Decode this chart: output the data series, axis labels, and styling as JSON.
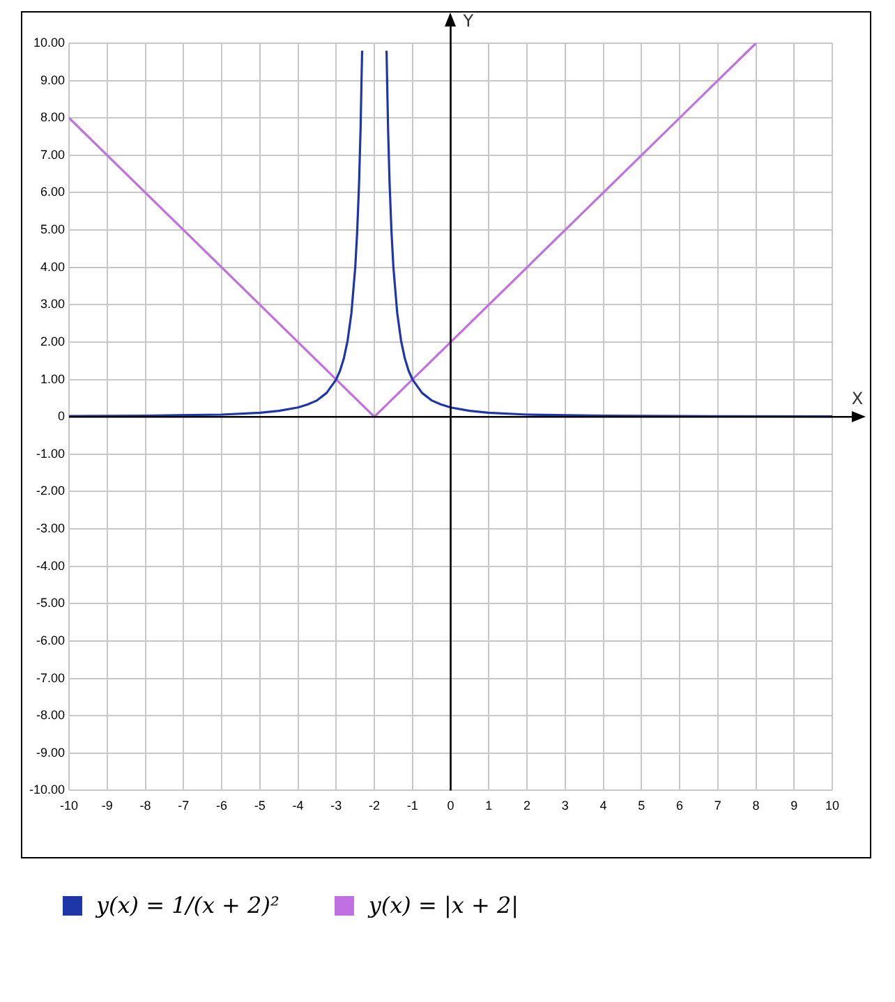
{
  "chart_data": {
    "type": "line",
    "xlabel": "X",
    "ylabel": "Y",
    "xlim": [
      -10,
      10
    ],
    "ylim": [
      -10,
      10
    ],
    "xticks": [
      -10,
      -9,
      -8,
      -7,
      -6,
      -5,
      -4,
      -3,
      -2,
      -1,
      0,
      1,
      2,
      3,
      4,
      5,
      6,
      7,
      8,
      9,
      10
    ],
    "yticks": [
      {
        "value": -10,
        "label": "-10.00"
      },
      {
        "value": -9,
        "label": "-9.00"
      },
      {
        "value": -8,
        "label": "-8.00"
      },
      {
        "value": -7,
        "label": "-7.00"
      },
      {
        "value": -6,
        "label": "-6.00"
      },
      {
        "value": -5,
        "label": "-5.00"
      },
      {
        "value": -4,
        "label": "-4.00"
      },
      {
        "value": -3,
        "label": "-3.00"
      },
      {
        "value": -2,
        "label": "-2.00"
      },
      {
        "value": -1,
        "label": "-1.00"
      },
      0,
      {
        "value": 1,
        "label": "1.00"
      },
      {
        "value": 2,
        "label": "2.00"
      },
      {
        "value": 3,
        "label": "3.00"
      },
      {
        "value": 4,
        "label": "4.00"
      },
      {
        "value": 5,
        "label": "5.00"
      },
      {
        "value": 6,
        "label": "6.00"
      },
      {
        "value": 7,
        "label": "7.00"
      },
      {
        "value": 8,
        "label": "8.00"
      },
      {
        "value": 9,
        "label": "9.00"
      },
      {
        "value": 10,
        "label": "10.00"
      }
    ],
    "grid": true,
    "legend": "bottom",
    "marker": "none",
    "line_style": "solid",
    "series": [
      {
        "name": "y(x) = 1/(x + 2)²",
        "color": "#1f36a8",
        "x": [
          -10,
          -8,
          -6,
          -5,
          -4.5,
          -4,
          -3.75,
          -3.5,
          -3.25,
          -3,
          -2.9,
          -2.8,
          -2.7,
          -2.6,
          -2.5,
          -2.45,
          -2.4,
          -2.36,
          -2.32,
          -2,
          -1.68,
          -1.64,
          -1.6,
          -1.55,
          -1.5,
          -1.4,
          -1.3,
          -1.2,
          -1.1,
          -1,
          -0.75,
          -0.5,
          -0.25,
          0,
          0.5,
          1,
          2,
          4,
          6,
          10
        ],
        "values": [
          0.02,
          0.03,
          0.06,
          0.11,
          0.16,
          0.25,
          0.33,
          0.44,
          0.64,
          1,
          1.23,
          1.56,
          2.04,
          2.78,
          4,
          4.94,
          6.25,
          7.72,
          9.8,
          null,
          9.8,
          7.72,
          6.25,
          4.94,
          4,
          2.78,
          2.04,
          1.56,
          1.23,
          1,
          0.64,
          0.44,
          0.33,
          0.25,
          0.16,
          0.11,
          0.06,
          0.03,
          0.02,
          0.01
        ]
      },
      {
        "name": "y(x) = |x + 2|",
        "color": "#c070e0",
        "x": [
          -10,
          -2,
          8
        ],
        "values": [
          8,
          0,
          10
        ]
      }
    ]
  }
}
